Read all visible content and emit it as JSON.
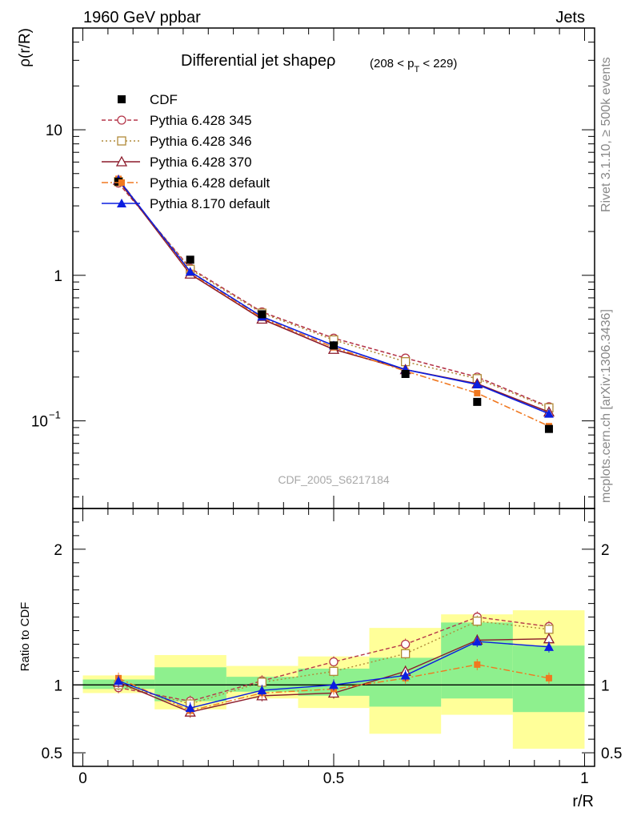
{
  "header": {
    "left": "1960 GeV ppbar",
    "right": "Jets",
    "side_top": "Rivet 3.1.10, ≥ 500k events",
    "side_bottom": "mcplots.cern.ch [arXiv:1306.3436]",
    "watermark": "CDF_2005_S6217184"
  },
  "chart_data": [
    {
      "type": "line",
      "title": "Differential jet shapeρ",
      "title_suffix_pre": "(208 < p",
      "title_suffix_sub": "T",
      "title_suffix_post": " < 229)",
      "ylabel": "ρ(r/R)",
      "yscale": "log",
      "ylim": [
        0.025,
        50
      ],
      "xlim": [
        -0.02,
        1.02
      ],
      "yticks": [
        {
          "value": 0.1,
          "label": "10",
          "exp": "−1"
        },
        {
          "value": 1,
          "label": "1",
          "exp": ""
        },
        {
          "value": 10,
          "label": "10",
          "exp": ""
        }
      ],
      "x": [
        0.071,
        0.214,
        0.357,
        0.5,
        0.643,
        0.786,
        0.929
      ],
      "data": {
        "name": "CDF",
        "color": "#000000",
        "values": [
          4.4,
          1.28,
          0.54,
          0.33,
          0.21,
          0.135,
          0.088
        ]
      },
      "series": [
        {
          "name": "Pythia 6.428 345",
          "color": "#b5364a",
          "dash": "5,3",
          "marker": "circle-open",
          "values": [
            4.3,
            1.12,
            0.56,
            0.37,
            0.27,
            0.2,
            0.125
          ]
        },
        {
          "name": "Pythia 6.428 346",
          "color": "#b08a38",
          "dash": "2,3",
          "marker": "square-open",
          "values": [
            4.4,
            1.1,
            0.55,
            0.36,
            0.255,
            0.195,
            0.123
          ]
        },
        {
          "name": "Pythia 6.428 370",
          "color": "#8b1a2a",
          "dash": "",
          "marker": "triangle-open",
          "values": [
            4.5,
            1.02,
            0.5,
            0.31,
            0.225,
            0.18,
            0.115
          ]
        },
        {
          "name": "Pythia 6.428 default",
          "color": "#f07820",
          "dash": "8,3,2,3",
          "marker": "square-filled",
          "values": [
            4.6,
            1.04,
            0.51,
            0.32,
            0.22,
            0.155,
            0.092
          ]
        },
        {
          "name": "Pythia 8.170 default",
          "color": "#0b1ee0",
          "dash": "",
          "marker": "triangle-filled",
          "values": [
            4.55,
            1.06,
            0.52,
            0.33,
            0.225,
            0.178,
            0.112
          ]
        }
      ]
    },
    {
      "type": "line",
      "title": "",
      "xlabel": "r/R",
      "ylabel": "Ratio to CDF",
      "ylim": [
        0.4,
        2.3
      ],
      "xlim": [
        -0.02,
        1.02
      ],
      "xticks": [
        {
          "value": 0,
          "label": "0"
        },
        {
          "value": 0.5,
          "label": "0.5"
        },
        {
          "value": 1,
          "label": "1"
        }
      ],
      "yticks": [
        {
          "value": 0.5,
          "label": "0.5"
        },
        {
          "value": 1,
          "label": "1"
        },
        {
          "value": 2,
          "label": "2"
        }
      ],
      "x": [
        0.071,
        0.214,
        0.357,
        0.5,
        0.643,
        0.786,
        0.929
      ],
      "bin_edges": [
        0,
        0.143,
        0.286,
        0.429,
        0.571,
        0.714,
        0.857,
        1.0
      ],
      "band_outer": [
        [
          0.94,
          1.07
        ],
        [
          0.82,
          1.22
        ],
        [
          0.9,
          1.14
        ],
        [
          0.83,
          1.21
        ],
        [
          0.64,
          1.42
        ],
        [
          0.78,
          1.52
        ],
        [
          0.53,
          1.55
        ]
      ],
      "band_inner": [
        [
          0.97,
          1.04
        ],
        [
          0.88,
          1.13
        ],
        [
          0.95,
          1.06
        ],
        [
          0.92,
          1.12
        ],
        [
          0.84,
          1.2
        ],
        [
          0.9,
          1.46
        ],
        [
          0.8,
          1.29
        ]
      ],
      "series": [
        {
          "name": "Pythia 6.428 345",
          "values": [
            0.98,
            0.88,
            1.03,
            1.17,
            1.3,
            1.5,
            1.43
          ]
        },
        {
          "name": "Pythia 6.428 346",
          "values": [
            1.0,
            0.86,
            1.02,
            1.1,
            1.23,
            1.47,
            1.41
          ]
        },
        {
          "name": "Pythia 6.428 370",
          "values": [
            1.02,
            0.8,
            0.92,
            0.94,
            1.1,
            1.33,
            1.34
          ]
        },
        {
          "name": "Pythia 6.428 default",
          "values": [
            1.05,
            0.81,
            0.94,
            0.97,
            1.05,
            1.15,
            1.05
          ]
        },
        {
          "name": "Pythia 8.170 default",
          "values": [
            1.03,
            0.83,
            0.96,
            1.0,
            1.07,
            1.32,
            1.28
          ]
        }
      ]
    }
  ]
}
